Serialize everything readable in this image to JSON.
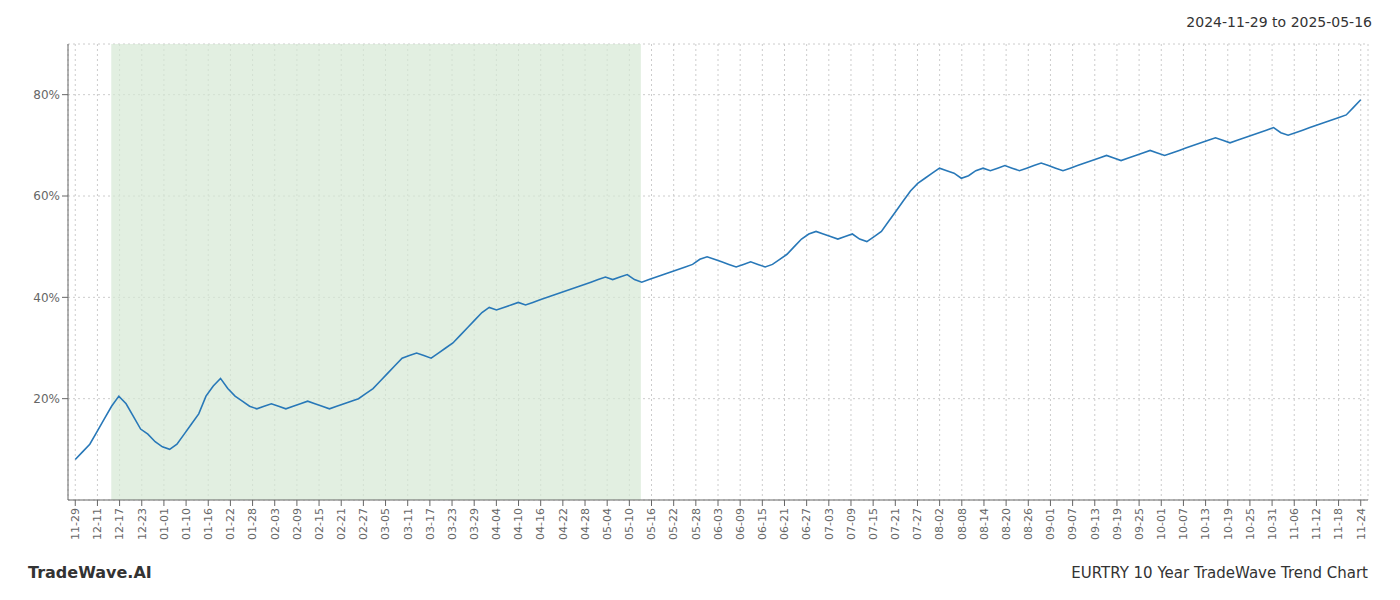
{
  "chart_data": {
    "type": "line",
    "title": "EURTRY 10 Year TradeWave Trend Chart",
    "subtitle": "2024-11-29 to 2025-05-16",
    "annotations": [
      "TradeWave.AI"
    ],
    "grid": true,
    "x": [
      0,
      1,
      2,
      3,
      4,
      5,
      6,
      7,
      8,
      9,
      10,
      11,
      12,
      13,
      14,
      15,
      16,
      17,
      18,
      19,
      20,
      21,
      22,
      23,
      24,
      25,
      26,
      27,
      28,
      29,
      30,
      31,
      32,
      33,
      34,
      35,
      36,
      37,
      38,
      39,
      40,
      41,
      42,
      43,
      44,
      45,
      46,
      47,
      48,
      49,
      50,
      51,
      52,
      53,
      54,
      55,
      56,
      57,
      58,
      59,
      60,
      61,
      62,
      63,
      64,
      65,
      66,
      67,
      68,
      69,
      70,
      71,
      72,
      73,
      74,
      75,
      76,
      77,
      78,
      79,
      80,
      81,
      82,
      83,
      84,
      85,
      86,
      87,
      88,
      89,
      90,
      91,
      92,
      93,
      94,
      95,
      96,
      97,
      98,
      99,
      100,
      101,
      102,
      103,
      104,
      105,
      106,
      107,
      108,
      109,
      110,
      111,
      112,
      113,
      114,
      115,
      116,
      117,
      118,
      119,
      120,
      121,
      122,
      123,
      124,
      125,
      126,
      127,
      128,
      129,
      130,
      131,
      132,
      133,
      134,
      135,
      136,
      137,
      138,
      139,
      140,
      141,
      142,
      143,
      144,
      145,
      146,
      147,
      148,
      149,
      150,
      151,
      152,
      153,
      154,
      155,
      156,
      157,
      158,
      159,
      160,
      161,
      162,
      163,
      164,
      165,
      166,
      167,
      168,
      169,
      170,
      171,
      172,
      173,
      174,
      175,
      176,
      177
    ],
    "series": [
      {
        "color": "#2878b8",
        "values": [
          8.0,
          9.5,
          11.0,
          13.5,
          16.0,
          18.5,
          20.5,
          19.0,
          16.5,
          14.0,
          13.0,
          11.5,
          10.5,
          10.0,
          11.0,
          13.0,
          15.0,
          17.0,
          20.5,
          22.5,
          24.0,
          22.0,
          20.5,
          19.5,
          18.5,
          18.0,
          18.5,
          19.0,
          18.5,
          18.0,
          18.5,
          19.0,
          19.5,
          19.0,
          18.5,
          18.0,
          18.5,
          19.0,
          19.5,
          20.0,
          21.0,
          22.0,
          23.5,
          25.0,
          26.5,
          28.0,
          28.5,
          29.0,
          28.5,
          28.0,
          29.0,
          30.0,
          31.0,
          32.5,
          34.0,
          35.5,
          37.0,
          38.0,
          37.5,
          38.0,
          38.5,
          39.0,
          38.5,
          39.0,
          39.5,
          40.0,
          40.5,
          41.0,
          41.5,
          42.0,
          42.5,
          43.0,
          43.5,
          44.0,
          43.5,
          44.0,
          44.5,
          43.5,
          43.0,
          43.5,
          44.0,
          44.5,
          45.0,
          45.5,
          46.0,
          46.5,
          47.5,
          48.0,
          47.5,
          47.0,
          46.5,
          46.0,
          46.5,
          47.0,
          46.5,
          46.0,
          46.5,
          47.5,
          48.5,
          50.0,
          51.5,
          52.5,
          53.0,
          52.5,
          52.0,
          51.5,
          52.0,
          52.5,
          51.5,
          51.0,
          52.0,
          53.0,
          55.0,
          57.0,
          59.0,
          61.0,
          62.5,
          63.5,
          64.5,
          65.5,
          65.0,
          64.5,
          63.5,
          64.0,
          65.0,
          65.5,
          65.0,
          65.5,
          66.0,
          65.5,
          65.0,
          65.5,
          66.0,
          66.5,
          66.0,
          65.5,
          65.0,
          65.5,
          66.0,
          66.5,
          67.0,
          67.5,
          68.0,
          67.5,
          67.0,
          67.5,
          68.0,
          68.5,
          69.0,
          68.5,
          68.0,
          68.5,
          69.0,
          69.5,
          70.0,
          70.5,
          71.0,
          71.5,
          71.0,
          70.5,
          71.0,
          71.5,
          72.0,
          72.5,
          73.0,
          73.5,
          72.5,
          72.0,
          72.5,
          73.0,
          73.5,
          74.0,
          74.5,
          75.0,
          75.5,
          76.0,
          77.5,
          79.0
        ]
      }
    ],
    "xlim": [
      -1,
      178
    ],
    "xticks": [
      {
        "value": 0,
        "label": "11-29"
      },
      {
        "value": 3.051724,
        "label": "12-11"
      },
      {
        "value": 6.103448,
        "label": "12-17"
      },
      {
        "value": 9.155172,
        "label": "12-23"
      },
      {
        "value": 12.206897,
        "label": "01-01"
      },
      {
        "value": 15.258621,
        "label": "01-10"
      },
      {
        "value": 18.310345,
        "label": "01-16"
      },
      {
        "value": 21.362069,
        "label": "01-22"
      },
      {
        "value": 24.413793,
        "label": "01-28"
      },
      {
        "value": 27.465517,
        "label": "02-03"
      },
      {
        "value": 30.517241,
        "label": "02-09"
      },
      {
        "value": 33.568966,
        "label": "02-15"
      },
      {
        "value": 36.62069,
        "label": "02-21"
      },
      {
        "value": 39.672414,
        "label": "02-27"
      },
      {
        "value": 42.724138,
        "label": "03-05"
      },
      {
        "value": 45.775862,
        "label": "03-11"
      },
      {
        "value": 48.827586,
        "label": "03-17"
      },
      {
        "value": 51.87931,
        "label": "03-23"
      },
      {
        "value": 54.931034,
        "label": "03-29"
      },
      {
        "value": 57.982759,
        "label": "04-04"
      },
      {
        "value": 61.034483,
        "label": "04-10"
      },
      {
        "value": 64.086207,
        "label": "04-16"
      },
      {
        "value": 67.137931,
        "label": "04-22"
      },
      {
        "value": 70.189655,
        "label": "04-28"
      },
      {
        "value": 73.241379,
        "label": "05-04"
      },
      {
        "value": 76.293103,
        "label": "05-10"
      },
      {
        "value": 79.344828,
        "label": "05-16"
      },
      {
        "value": 82.396552,
        "label": "05-22"
      },
      {
        "value": 85.448276,
        "label": "05-28"
      },
      {
        "value": 88.5,
        "label": "06-03"
      },
      {
        "value": 91.551724,
        "label": "06-09"
      },
      {
        "value": 94.603448,
        "label": "06-15"
      },
      {
        "value": 97.655172,
        "label": "06-21"
      },
      {
        "value": 100.706897,
        "label": "06-27"
      },
      {
        "value": 103.758621,
        "label": "07-03"
      },
      {
        "value": 106.810345,
        "label": "07-09"
      },
      {
        "value": 109.862069,
        "label": "07-15"
      },
      {
        "value": 112.913793,
        "label": "07-21"
      },
      {
        "value": 115.965517,
        "label": "07-27"
      },
      {
        "value": 119.017241,
        "label": "08-02"
      },
      {
        "value": 122.068966,
        "label": "08-08"
      },
      {
        "value": 125.12069,
        "label": "08-14"
      },
      {
        "value": 128.172414,
        "label": "08-20"
      },
      {
        "value": 131.224138,
        "label": "08-26"
      },
      {
        "value": 134.275862,
        "label": "09-01"
      },
      {
        "value": 137.327586,
        "label": "09-07"
      },
      {
        "value": 140.37931,
        "label": "09-13"
      },
      {
        "value": 143.431034,
        "label": "09-19"
      },
      {
        "value": 146.482759,
        "label": "09-25"
      },
      {
        "value": 149.534483,
        "label": "10-01"
      },
      {
        "value": 152.586207,
        "label": "10-07"
      },
      {
        "value": 155.637931,
        "label": "10-13"
      },
      {
        "value": 158.689655,
        "label": "10-19"
      },
      {
        "value": 161.741379,
        "label": "10-25"
      },
      {
        "value": 164.793103,
        "label": "10-31"
      },
      {
        "value": 167.844828,
        "label": "11-06"
      },
      {
        "value": 170.896552,
        "label": "11-12"
      },
      {
        "value": 173.948276,
        "label": "11-18"
      },
      {
        "value": 177,
        "label": "11-24"
      }
    ],
    "ylim": [
      0,
      90
    ],
    "yticks": [
      {
        "value": 20,
        "label": "20%"
      },
      {
        "value": 40,
        "label": "40%"
      },
      {
        "value": 60,
        "label": "60%"
      },
      {
        "value": 80,
        "label": "80%"
      }
    ],
    "shaded_span": {
      "x": [
        4.956,
        77.88
      ],
      "color": "#d5e8d4"
    }
  }
}
